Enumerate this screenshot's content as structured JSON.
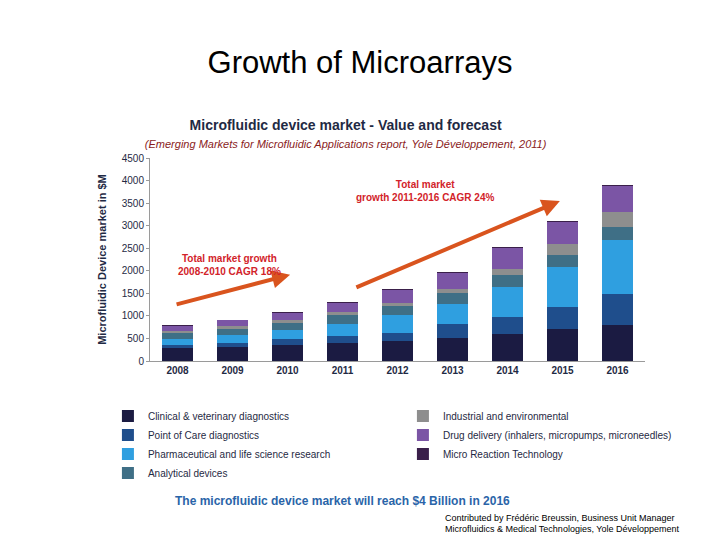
{
  "page": {
    "title": "Growth of Microarrays",
    "caption": "The microfluidic device market will reach $4 Billion in 2016",
    "credit": [
      "Contributed by Frédéric Breussin, Business Unit Manager",
      "Microfluidics & Medical Technologies, Yole Développement"
    ]
  },
  "chart_data": {
    "type": "bar",
    "stacked": true,
    "title": "Microfluidic device market - Value and forecast",
    "subtitle": "(Emerging Markets for Microfluidic Applications report, Yole Développement, 2011)",
    "y_label": "Microfluidic Device market in $M",
    "categories": [
      "2008",
      "2009",
      "2010",
      "2011",
      "2012",
      "2013",
      "2014",
      "2015",
      "2016"
    ],
    "series": [
      {
        "name": "Clinical & veterinary diagnostics",
        "color": "#1b1b42",
        "values": [
          280,
          320,
          350,
          400,
          450,
          520,
          600,
          700,
          800
        ]
      },
      {
        "name": "Point of Care diagnostics",
        "color": "#1f4e8c",
        "values": [
          70,
          80,
          140,
          150,
          180,
          300,
          380,
          500,
          680
        ]
      },
      {
        "name": "Pharmaceutical and life science research",
        "color": "#2f9fe0",
        "values": [
          130,
          170,
          190,
          280,
          380,
          450,
          670,
          880,
          1200
        ]
      },
      {
        "name": "Analytical devices",
        "color": "#3f6f86",
        "values": [
          130,
          150,
          170,
          190,
          200,
          230,
          250,
          280,
          300
        ]
      },
      {
        "name": "Industrial and environmental",
        "color": "#8e8e8e",
        "values": [
          60,
          60,
          60,
          60,
          80,
          100,
          150,
          230,
          330
        ]
      },
      {
        "name": "Drug delivery (inhalers, micropumps, microneedles)",
        "color": "#7b55a5",
        "values": [
          100,
          120,
          160,
          200,
          280,
          360,
          450,
          490,
          570
        ]
      },
      {
        "name": "Micro Reaction Technology",
        "color": "#3a1f4a",
        "values": [
          20,
          20,
          20,
          20,
          20,
          20,
          20,
          20,
          20
        ]
      }
    ],
    "ylim": [
      0,
      4500
    ],
    "yticks": [
      0,
      500,
      1000,
      1500,
      2000,
      2500,
      3000,
      3500,
      4000,
      4500
    ],
    "grid": false,
    "legend": "bottom",
    "data_labels": false,
    "annotations": [
      {
        "text": [
          "Total market growth",
          "2008-2010 CAGR 18%"
        ]
      },
      {
        "text": [
          "Total market",
          "growth 2011-2016 CAGR 24%"
        ]
      }
    ]
  }
}
